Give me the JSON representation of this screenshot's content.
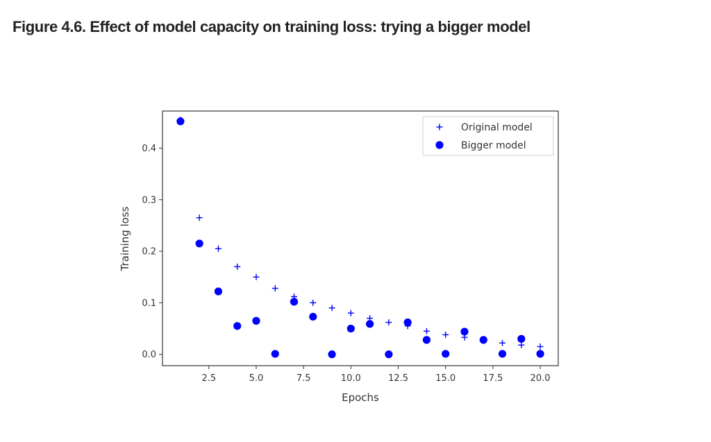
{
  "page": {
    "title": "Figure 4.6. Effect of model capacity on training loss: trying a bigger model"
  },
  "chart_data": {
    "type": "scatter",
    "title": "",
    "xlabel": "Epochs",
    "ylabel": "Training loss",
    "xlim": [
      0.05,
      20.95
    ],
    "ylim": [
      -0.022,
      0.472
    ],
    "x_ticks": [
      2.5,
      5.0,
      7.5,
      10.0,
      12.5,
      15.0,
      17.5,
      20.0
    ],
    "x_tick_labels": [
      "2.5",
      "5.0",
      "7.5",
      "10.0",
      "12.5",
      "15.0",
      "17.5",
      "20.0"
    ],
    "y_ticks": [
      0.0,
      0.1,
      0.2,
      0.3,
      0.4
    ],
    "y_tick_labels": [
      "0.0",
      "0.1",
      "0.2",
      "0.3",
      "0.4"
    ],
    "grid": false,
    "legend_position": "top-right",
    "series": [
      {
        "name": "Original model",
        "marker": "plus",
        "color": "#0000ff",
        "x": [
          1,
          2,
          3,
          4,
          5,
          6,
          7,
          8,
          9,
          10,
          11,
          12,
          13,
          14,
          15,
          16,
          17,
          18,
          19,
          20
        ],
        "y": [
          0.455,
          0.265,
          0.205,
          0.17,
          0.15,
          0.128,
          0.112,
          0.1,
          0.09,
          0.08,
          0.07,
          0.062,
          0.055,
          0.045,
          0.038,
          0.033,
          0.028,
          0.022,
          0.018,
          0.015
        ]
      },
      {
        "name": "Bigger model",
        "marker": "circle",
        "color": "#0000ff",
        "x": [
          1,
          2,
          3,
          4,
          5,
          6,
          7,
          8,
          9,
          10,
          11,
          12,
          13,
          14,
          15,
          16,
          17,
          18,
          19,
          20
        ],
        "y": [
          0.452,
          0.215,
          0.122,
          0.055,
          0.065,
          0.001,
          0.102,
          0.073,
          0.0,
          0.05,
          0.059,
          0.0,
          0.062,
          0.028,
          0.001,
          0.044,
          0.028,
          0.001,
          0.03,
          0.001
        ]
      }
    ]
  }
}
